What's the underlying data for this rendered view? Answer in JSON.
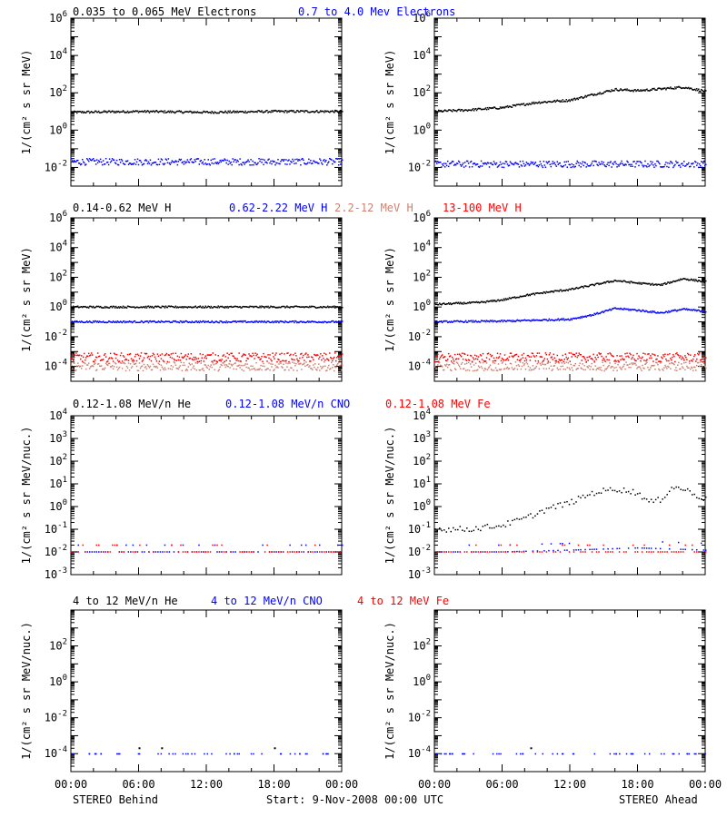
{
  "rows": [
    {
      "legend": [
        {
          "text": "0.035 to 0.065 MeV Electrons",
          "color": "#000000"
        },
        {
          "text": "0.7 to 4.0 Mev Electrons",
          "color": "#0000ff"
        }
      ],
      "ylabel": "1/(cm² s sr MeV)",
      "yexp": {
        "min": -3,
        "max": 6
      },
      "yticks": [
        {
          "e": 6,
          "label": "10",
          "sup": "6"
        },
        {
          "e": 4,
          "label": "10",
          "sup": "4"
        },
        {
          "e": 2,
          "label": "10",
          "sup": "2"
        },
        {
          "e": 0,
          "label": "10",
          "sup": "0"
        },
        {
          "e": -2,
          "label": "10",
          "sup": "-2"
        }
      ]
    },
    {
      "legend": [
        {
          "text": "0.14-0.62 MeV H",
          "color": "#000000"
        },
        {
          "text": "0.62-2.22 MeV H",
          "color": "#0000ff"
        },
        {
          "text": "2.2-12 MeV H",
          "color": "#d08070"
        },
        {
          "text": "13-100 MeV H",
          "color": "#ff0000"
        }
      ],
      "ylabel": "1/(cm² s sr MeV)",
      "yexp": {
        "min": -5,
        "max": 6
      },
      "yticks": [
        {
          "e": 6,
          "label": "10",
          "sup": "6"
        },
        {
          "e": 4,
          "label": "10",
          "sup": "4"
        },
        {
          "e": 2,
          "label": "10",
          "sup": "2"
        },
        {
          "e": 0,
          "label": "10",
          "sup": "0"
        },
        {
          "e": -2,
          "label": "10",
          "sup": "-2"
        },
        {
          "e": -4,
          "label": "10",
          "sup": "-4"
        }
      ]
    },
    {
      "legend": [
        {
          "text": "0.12-1.08 MeV/n He",
          "color": "#000000"
        },
        {
          "text": "0.12-1.08 MeV/n CNO",
          "color": "#0000ff"
        },
        {
          "text": "0.12-1.08 MeV Fe",
          "color": "#ff0000"
        }
      ],
      "ylabel": "1/(cm² s sr MeV/nuc.)",
      "yexp": {
        "min": -3,
        "max": 4
      },
      "yticks": [
        {
          "e": 4,
          "label": "10",
          "sup": "4"
        },
        {
          "e": 3,
          "label": "10",
          "sup": "3"
        },
        {
          "e": 2,
          "label": "10",
          "sup": "2"
        },
        {
          "e": 1,
          "label": "10",
          "sup": "1"
        },
        {
          "e": 0,
          "label": "10",
          "sup": "0"
        },
        {
          "e": -1,
          "label": "10",
          "sup": "-1"
        },
        {
          "e": -2,
          "label": "10",
          "sup": "-2"
        },
        {
          "e": -3,
          "label": "10",
          "sup": "-3"
        }
      ]
    },
    {
      "legend": [
        {
          "text": "4 to 12 MeV/n He",
          "color": "#000000"
        },
        {
          "text": "4 to 12 MeV/n CNO",
          "color": "#0000ff"
        },
        {
          "text": "4 to 12 MeV Fe",
          "color": "#ff0000"
        }
      ],
      "ylabel": "1/(cm² s sr MeV/nuc.)",
      "yexp": {
        "min": -5,
        "max": 4
      },
      "yticks": [
        {
          "e": 2,
          "label": "10",
          "sup": "2"
        },
        {
          "e": 0,
          "label": "10",
          "sup": "0"
        },
        {
          "e": -2,
          "label": "10",
          "sup": "-2"
        },
        {
          "e": -4,
          "label": "10",
          "sup": "-4"
        }
      ]
    }
  ],
  "xticks": [
    "00:00",
    "06:00",
    "12:00",
    "18:00",
    "00:00"
  ],
  "footer": {
    "left": "STEREO Behind",
    "center": "Start:  9-Nov-2008 00:00 UTC",
    "right": "STEREO Ahead"
  },
  "chart_data": [
    {
      "type": "scatter",
      "panel": "STEREO Behind",
      "row": 1,
      "yscale": "log",
      "x_unit": "hours since start",
      "xlim": [
        0,
        24
      ],
      "ylim": [
        0.001,
        1000000
      ],
      "series": [
        {
          "name": "0.035 to 0.065 MeV Electrons",
          "color": "#000000",
          "x": [
            0,
            6,
            12,
            18,
            24
          ],
          "y": [
            9,
            10,
            9,
            10,
            10
          ]
        },
        {
          "name": "0.7 to 4.0 Mev Electrons",
          "color": "#0000ff",
          "x": [
            0,
            6,
            12,
            18,
            24
          ],
          "y": [
            0.02,
            0.02,
            0.02,
            0.02,
            0.02
          ]
        }
      ]
    },
    {
      "type": "scatter",
      "panel": "STEREO Ahead",
      "row": 1,
      "yscale": "log",
      "x_unit": "hours since start",
      "xlim": [
        0,
        24
      ],
      "ylim": [
        0.001,
        1000000
      ],
      "series": [
        {
          "name": "0.035 to 0.065 MeV Electrons",
          "color": "#000000",
          "x": [
            0,
            3,
            6,
            9,
            12,
            14,
            16,
            18,
            20,
            22,
            24
          ],
          "y": [
            10,
            12,
            16,
            30,
            40,
            80,
            150,
            130,
            160,
            200,
            120
          ]
        },
        {
          "name": "0.7 to 4.0 Mev Electrons",
          "color": "#0000ff",
          "x": [
            0,
            6,
            12,
            18,
            24
          ],
          "y": [
            0.015,
            0.015,
            0.015,
            0.015,
            0.015
          ]
        }
      ]
    },
    {
      "type": "scatter",
      "panel": "STEREO Behind",
      "row": 2,
      "yscale": "log",
      "x_unit": "hours since start",
      "xlim": [
        0,
        24
      ],
      "ylim": [
        1e-05,
        1000000
      ],
      "series": [
        {
          "name": "0.14-0.62 MeV H",
          "color": "#000000",
          "x": [
            0,
            6,
            12,
            18,
            24
          ],
          "y": [
            1,
            1,
            1,
            1,
            1
          ]
        },
        {
          "name": "0.62-2.22 MeV H",
          "color": "#0000ff",
          "x": [
            0,
            6,
            12,
            18,
            24
          ],
          "y": [
            0.1,
            0.1,
            0.1,
            0.1,
            0.1
          ]
        },
        {
          "name": "2.2-12 MeV H",
          "color": "#d08070",
          "x": [
            0,
            6,
            12,
            18,
            24
          ],
          "y": [
            0.0001,
            0.0001,
            0.0001,
            0.0001,
            0.0001
          ]
        },
        {
          "name": "13-100 MeV H",
          "color": "#ff0000",
          "x": [
            0,
            6,
            12,
            18,
            24
          ],
          "y": [
            0.0004,
            0.0004,
            0.0004,
            0.0004,
            0.0004
          ]
        }
      ]
    },
    {
      "type": "scatter",
      "panel": "STEREO Ahead",
      "row": 2,
      "yscale": "log",
      "x_unit": "hours since start",
      "xlim": [
        0,
        24
      ],
      "ylim": [
        1e-05,
        1000000
      ],
      "series": [
        {
          "name": "0.14-0.62 MeV H",
          "color": "#000000",
          "x": [
            0,
            4,
            6,
            8,
            10,
            12,
            14,
            16,
            18,
            20,
            22,
            24
          ],
          "y": [
            1.5,
            2,
            3,
            6,
            10,
            15,
            30,
            60,
            40,
            30,
            80,
            50
          ]
        },
        {
          "name": "0.62-2.22 MeV H",
          "color": "#0000ff",
          "x": [
            0,
            6,
            12,
            14,
            16,
            18,
            20,
            22,
            24
          ],
          "y": [
            0.1,
            0.11,
            0.15,
            0.3,
            0.8,
            0.6,
            0.4,
            0.7,
            0.5
          ]
        },
        {
          "name": "2.2-12 MeV H",
          "color": "#d08070",
          "x": [
            0,
            6,
            12,
            18,
            24
          ],
          "y": [
            0.0001,
            0.0001,
            0.0001,
            0.0001,
            0.0001
          ]
        },
        {
          "name": "13-100 MeV H",
          "color": "#ff0000",
          "x": [
            0,
            6,
            12,
            18,
            24
          ],
          "y": [
            0.0004,
            0.0004,
            0.0004,
            0.0004,
            0.0004
          ]
        }
      ]
    },
    {
      "type": "scatter",
      "panel": "STEREO Behind",
      "row": 3,
      "yscale": "log",
      "x_unit": "hours since start",
      "xlim": [
        0,
        24
      ],
      "ylim": [
        0.001,
        10000
      ],
      "series": [
        {
          "name": "0.12-1.08 MeV/n He",
          "color": "#000000",
          "x": [
            0,
            6,
            12,
            18,
            24
          ],
          "y": [
            0.05,
            0.05,
            0.05,
            0.05,
            0.05
          ]
        },
        {
          "name": "0.12-1.08 MeV/n CNO",
          "color": "#0000ff",
          "x": [
            0,
            6,
            12,
            18,
            24
          ],
          "y": [
            0.01,
            0.01,
            0.01,
            0.01,
            0.01
          ]
        },
        {
          "name": "0.12-1.08 MeV Fe",
          "color": "#ff0000",
          "x": [
            0,
            6,
            12,
            18,
            24
          ],
          "y": [
            0.01,
            0.01,
            0.01,
            0.01,
            0.01
          ]
        }
      ]
    },
    {
      "type": "scatter",
      "panel": "STEREO Ahead",
      "row": 3,
      "yscale": "log",
      "x_unit": "hours since start",
      "xlim": [
        0,
        24
      ],
      "ylim": [
        0.001,
        10000
      ],
      "series": [
        {
          "name": "0.12-1.08 MeV/n He",
          "color": "#000000",
          "x": [
            0,
            3,
            6,
            8,
            10,
            12,
            14,
            16,
            18,
            19,
            20,
            21,
            22,
            24
          ],
          "y": [
            0.1,
            0.1,
            0.15,
            0.3,
            0.8,
            1.5,
            4,
            6,
            4,
            1.5,
            2,
            7,
            6,
            2
          ]
        },
        {
          "name": "0.12-1.08 MeV/n CNO",
          "color": "#0000ff",
          "x": [
            0,
            6,
            12,
            18,
            24
          ],
          "y": [
            0.01,
            0.01,
            0.012,
            0.015,
            0.012
          ]
        },
        {
          "name": "0.12-1.08 MeV Fe",
          "color": "#ff0000",
          "x": [
            0,
            6,
            12,
            18,
            24
          ],
          "y": [
            0.01,
            0.01,
            0.01,
            0.01,
            0.01
          ]
        }
      ]
    },
    {
      "type": "scatter",
      "panel": "STEREO Behind",
      "row": 4,
      "yscale": "log",
      "x_unit": "hours since start",
      "xlim": [
        0,
        24
      ],
      "ylim": [
        1e-05,
        10000
      ],
      "series": [
        {
          "name": "4 to 12 MeV/n He",
          "color": "#000000",
          "x": [
            6,
            8,
            18
          ],
          "y": [
            0.0002,
            0.0002,
            0.0002
          ]
        },
        {
          "name": "4 to 12 MeV/n CNO",
          "color": "#0000ff",
          "x": [
            0,
            6,
            12,
            18,
            24
          ],
          "y": [
            0.0001,
            0.0001,
            0.0001,
            0.0001,
            0.0001
          ]
        },
        {
          "name": "4 to 12 MeV Fe",
          "color": "#ff0000",
          "x": [],
          "y": []
        }
      ]
    },
    {
      "type": "scatter",
      "panel": "STEREO Ahead",
      "row": 4,
      "yscale": "log",
      "x_unit": "hours since start",
      "xlim": [
        0,
        24
      ],
      "ylim": [
        1e-05,
        10000
      ],
      "series": [
        {
          "name": "4 to 12 MeV/n He",
          "color": "#000000",
          "x": [
            8.5
          ],
          "y": [
            0.0002
          ]
        },
        {
          "name": "4 to 12 MeV/n CNO",
          "color": "#0000ff",
          "x": [
            0,
            6,
            12,
            18,
            24
          ],
          "y": [
            0.0001,
            0.0001,
            0.0001,
            0.0001,
            0.0001
          ]
        },
        {
          "name": "4 to 12 MeV Fe",
          "color": "#ff0000",
          "x": [],
          "y": []
        }
      ]
    }
  ]
}
